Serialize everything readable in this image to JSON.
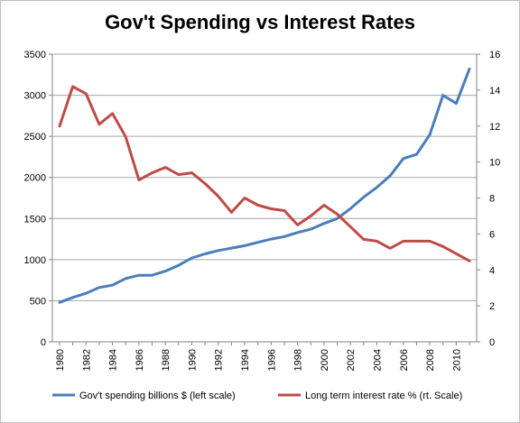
{
  "chart_data": {
    "type": "line",
    "title": "Gov't Spending vs Interest Rates",
    "x": [
      1980,
      1981,
      1982,
      1983,
      1984,
      1985,
      1986,
      1987,
      1988,
      1989,
      1990,
      1991,
      1992,
      1993,
      1994,
      1995,
      1996,
      1997,
      1998,
      1999,
      2000,
      2001,
      2002,
      2003,
      2004,
      2005,
      2006,
      2007,
      2008,
      2009,
      2010,
      2011
    ],
    "x_tick_labels": [
      "1980",
      "1982",
      "1984",
      "1986",
      "1988",
      "1990",
      "1992",
      "1994",
      "1996",
      "1998",
      "2000",
      "2002",
      "2004",
      "2006",
      "2008",
      "2010"
    ],
    "y_left": {
      "ylim": [
        0,
        3500
      ],
      "ticks": [
        "0",
        "500",
        "1000",
        "1500",
        "2000",
        "2500",
        "3000",
        "3500"
      ]
    },
    "y_right": {
      "ylim": [
        0,
        16
      ],
      "ticks": [
        "0",
        "2",
        "4",
        "6",
        "8",
        "10",
        "12",
        "14",
        "16"
      ]
    },
    "grid": "horizontal",
    "legend": "bottom",
    "series": [
      {
        "name": "Gov't spending billions $ (left scale)",
        "axis": "left",
        "color": "#4a7ebb",
        "values": [
          480,
          540,
          590,
          660,
          690,
          770,
          810,
          810,
          860,
          930,
          1020,
          1070,
          1110,
          1140,
          1170,
          1210,
          1250,
          1280,
          1330,
          1370,
          1440,
          1500,
          1620,
          1760,
          1880,
          2020,
          2230,
          2280,
          2520,
          3000,
          2900,
          3320
        ]
      },
      {
        "name": "Long term interest rate % (rt. Scale)",
        "axis": "right",
        "color": "#be4b48",
        "values": [
          12.0,
          14.2,
          13.8,
          12.1,
          12.7,
          11.4,
          9.0,
          9.4,
          9.7,
          9.3,
          9.4,
          8.8,
          8.1,
          7.2,
          8.0,
          7.6,
          7.4,
          7.3,
          6.5,
          7.0,
          7.6,
          7.1,
          6.4,
          5.7,
          5.6,
          5.2,
          5.6,
          5.6,
          5.6,
          5.3,
          4.9,
          4.5
        ]
      }
    ]
  }
}
